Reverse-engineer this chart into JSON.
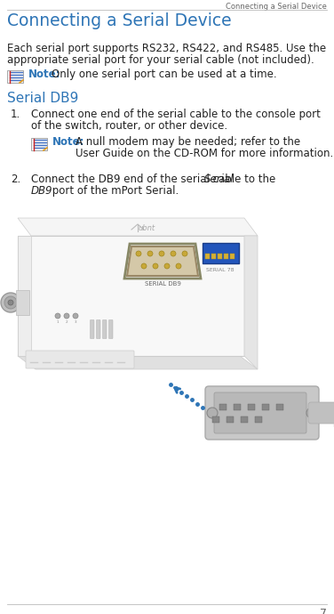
{
  "page_title": "Connecting a Serial Device",
  "header_text": "Connecting a Serial Device",
  "title_text": "Connecting a Serial Device",
  "title_color": "#2e75b6",
  "header_color": "#666666",
  "note_color": "#2e75b6",
  "body_color": "#222222",
  "background_color": "#ffffff",
  "body1_line1": "Each serial port supports RS232, RS422, and RS485. Use the",
  "body1_line2": "appropriate serial port for your serial cable (not included).",
  "note1_label": "Note:",
  "note1_text": "Only one serial port can be used at a time.",
  "section_heading": "Serial DB9",
  "step1_num": "1.",
  "step1_line1": "Connect one end of the serial cable to the console port",
  "step1_line2": "of the switch, router, or other device.",
  "note2_label": "Note:",
  "note2_line1": "A null modem may be needed; refer to the",
  "note2_line2": "User Guide on the CD-ROM for more information.",
  "step2_num": "2.",
  "step2_line1_plain": "Connect the DB9 end of the serial cable to the ",
  "step2_line1_italic": "Serial",
  "step2_line2_italic": "DB9",
  "step2_line2_plain": " port of the mPort Serial.",
  "footer_num": "7",
  "rule_color": "#bbbbbb"
}
